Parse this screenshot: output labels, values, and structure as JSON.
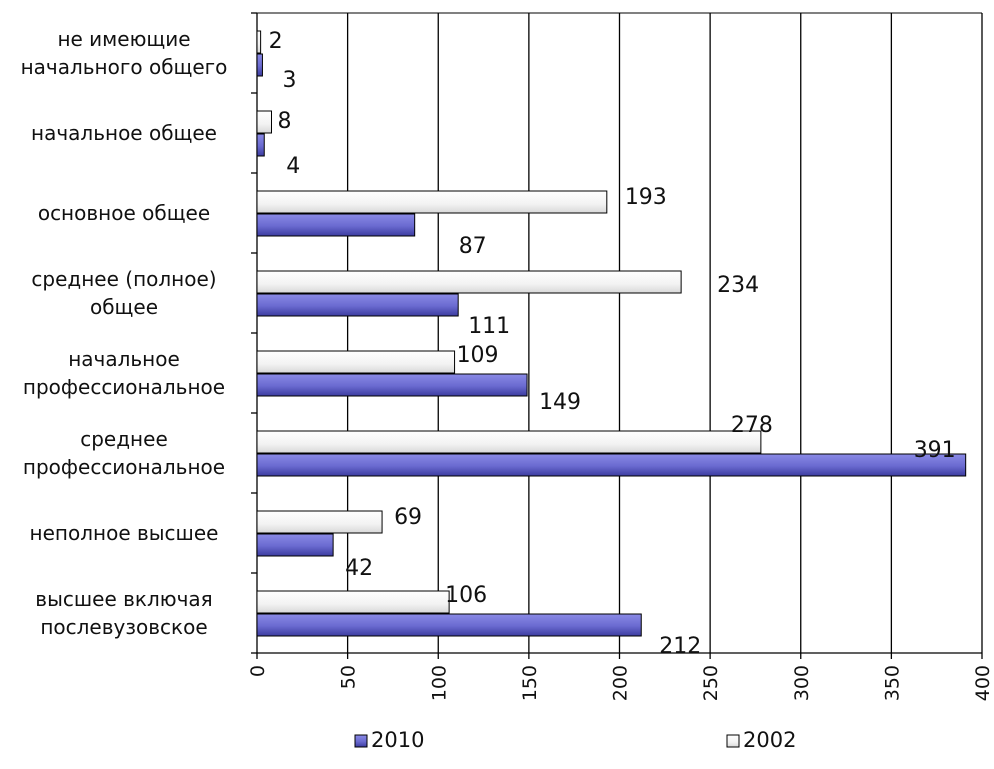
{
  "chart_data": {
    "type": "bar",
    "orientation": "horizontal",
    "categories": [
      [
        "не имеющие",
        "начального общего"
      ],
      [
        "начальное общее"
      ],
      [
        "основное общее"
      ],
      [
        "среднее (полное)",
        "общее"
      ],
      [
        "начальное",
        "профессиональное"
      ],
      [
        "среднее",
        "профессиональное"
      ],
      [
        "неполное высшее"
      ],
      [
        "высшее включая",
        "послевузовское"
      ]
    ],
    "series": [
      {
        "name": "2002",
        "color": "#f2f2f2",
        "values": [
          2,
          8,
          193,
          234,
          109,
          278,
          69,
          106
        ]
      },
      {
        "name": "2010",
        "color": "#6a6ad0",
        "values": [
          3,
          4,
          87,
          111,
          149,
          391,
          42,
          212
        ]
      }
    ],
    "xlim": [
      0,
      400
    ],
    "xticks": [
      0,
      50,
      100,
      150,
      200,
      250,
      300,
      350,
      400
    ],
    "grid": true,
    "legend": {
      "placement": "bottom",
      "entries": [
        "2010",
        "2002"
      ]
    }
  }
}
